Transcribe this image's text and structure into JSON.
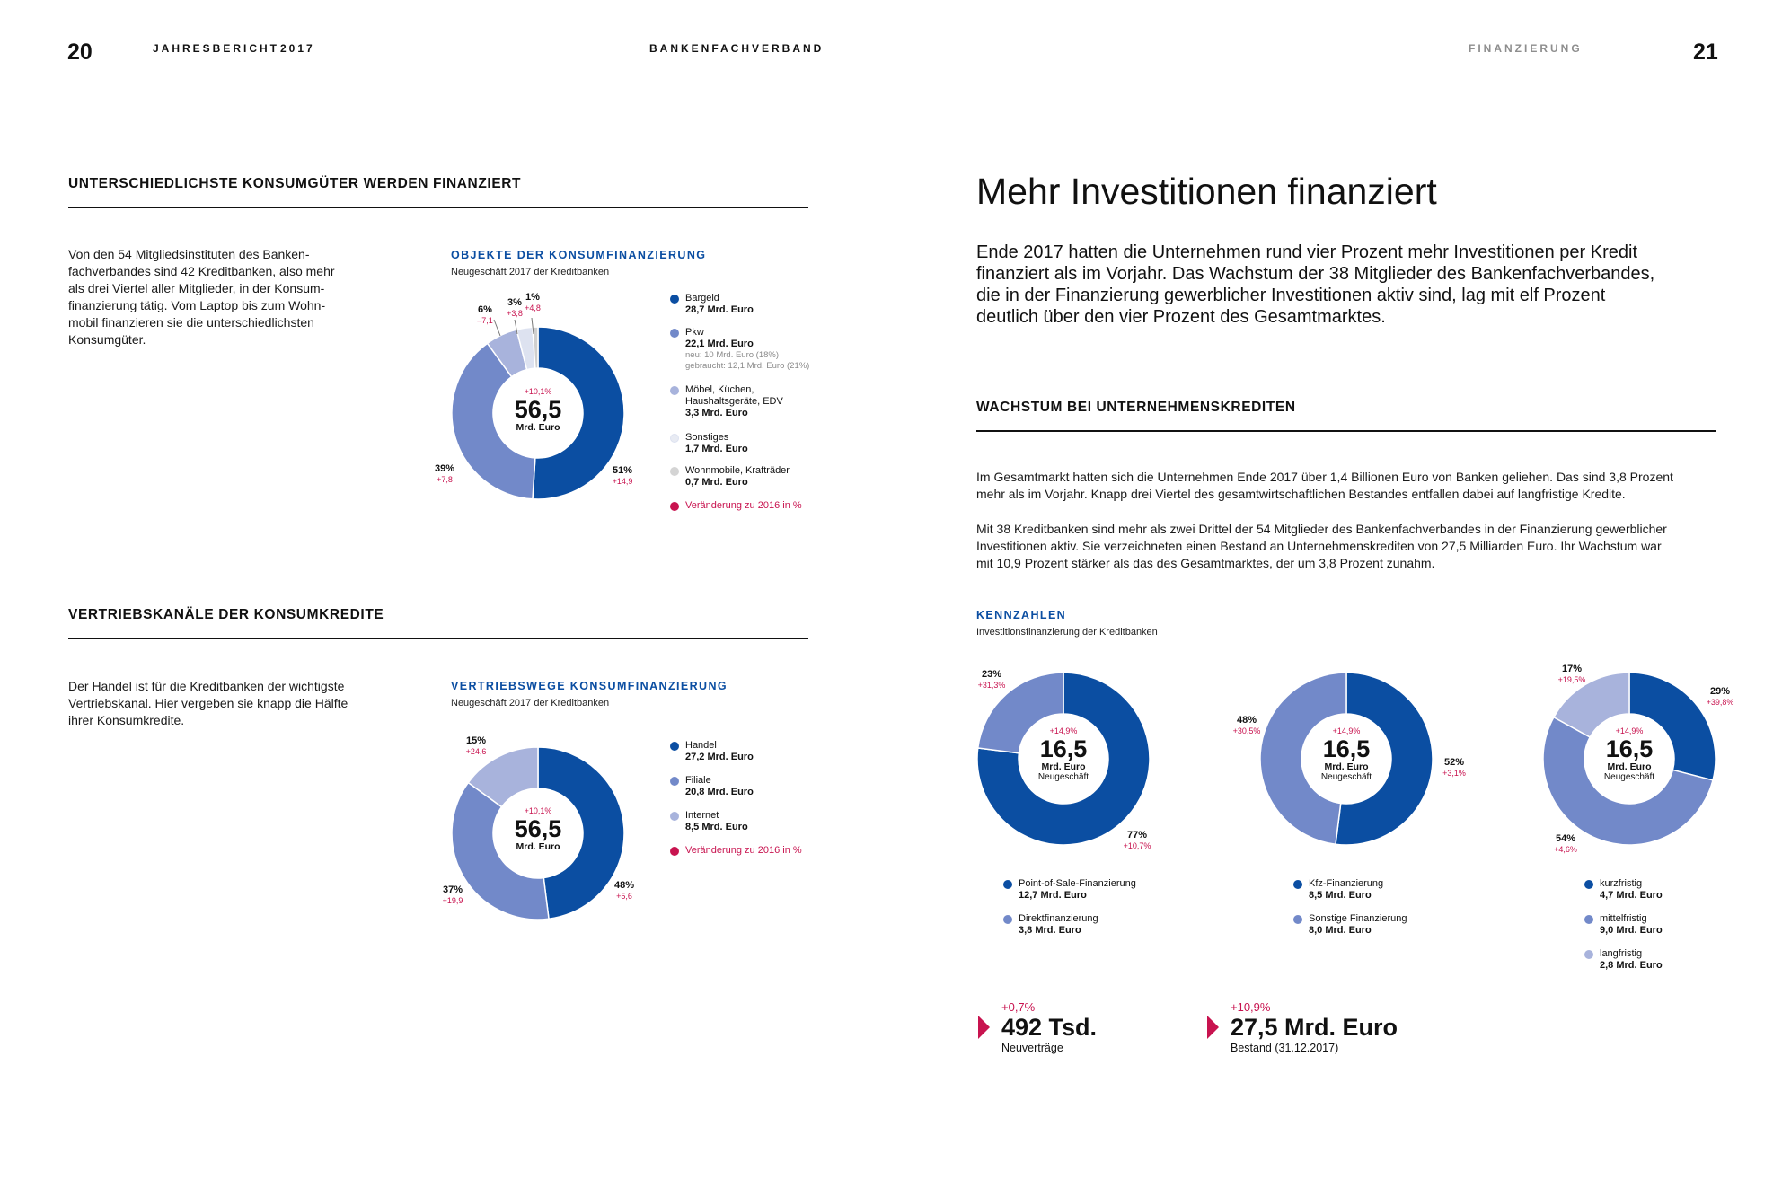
{
  "header": {
    "page_left": "20",
    "running_left_1": "JAHRESBERICHT",
    "running_left_2": "2017",
    "running_center": "BANKENFACHVERBAND",
    "running_right": "FINANZIERUNG",
    "page_right": "21"
  },
  "left": {
    "section1": {
      "heading": "UNTERSCHIEDLICHSTE KONSUMGÜTER WERDEN FINANZIERT",
      "lines": [
        "Von den 54 Mitgliedsinstituten des Banken-",
        "fachverbandes sind 42 Kreditbanken, also mehr",
        "als drei Viertel aller Mitglieder, in der Konsum-",
        "finanzierung tätig. Vom Laptop bis zum Wohn-",
        "mobil finanzieren sie die unterschiedlichsten",
        "Konsumgüter."
      ]
    },
    "section2": {
      "heading": "VERTRIEBSKANÄLE DER KONSUMKREDITE",
      "lines": [
        "Der Handel ist für die Kreditbanken der wichtigste",
        "Vertriebskanal. Hier vergeben sie knapp die Hälfte",
        "ihrer Konsumkredite."
      ]
    }
  },
  "right": {
    "title": "Mehr Investitionen finanziert",
    "lead_lines": [
      "Ende 2017 hatten die Unternehmen rund vier Prozent mehr Investitionen per Kredit",
      "finanziert als im Vorjahr. Das Wachstum der 38 Mitglieder des Bankenfachverbandes,",
      "die in der Finanzierung gewerblicher Investitionen aktiv sind, lag mit elf Prozent",
      "deutlich über den vier Prozent des Gesamtmarktes."
    ],
    "section_heading": "WACHSTUM BEI UNTERNEHMENSKREDITEN",
    "para1_lines": [
      "Im Gesamtmarkt hatten sich die Unternehmen Ende 2017 über 1,4 Billionen Euro von Banken geliehen. Das sind 3,8 Prozent",
      "mehr als im Vorjahr. Knapp drei Viertel des gesamtwirtschaftlichen Bestandes entfallen dabei auf langfristige Kredite."
    ],
    "para2_lines": [
      "Mit 38 Kreditbanken sind mehr als zwei Drittel der 54 Mitglieder des Bankenfachverbandes in der Finanzierung gewerblicher",
      "Investitionen aktiv. Sie verzeichneten einen Bestand an Unternehmenskrediten von 27,5 Milliarden Euro. Ihr Wachstum war",
      "mit 10,9 Prozent stärker als das des Gesamtmarktes, der um 3,8 Prozent zunahm."
    ],
    "kennzahlen_title": "KENNZAHLEN",
    "kennzahlen_sub": "Investitionsfinanzierung der Kreditbanken",
    "kpis": [
      {
        "change": "+0,7%",
        "value": "492 Tsd.",
        "caption": "Neuverträge"
      },
      {
        "change": "+10,9%",
        "value": "27,5 Mrd. Euro",
        "caption": "Bestand (31.12.2017)"
      }
    ]
  },
  "chart_data": [
    {
      "type": "pie",
      "title": "OBJEKTE DER KONSUMFINANZIERUNG",
      "subtitle": "Neugeschäft 2017 der Kreditbanken",
      "center_change": "+10,1%",
      "center_value": "56,5",
      "center_unit": "Mrd. Euro",
      "center_unit2": "",
      "slices": [
        {
          "label": "Bargeld",
          "value": "28,7 Mrd. Euro",
          "share": 51,
          "pct": "51%",
          "change": "+14,9",
          "color": "#0b4ea2",
          "note": []
        },
        {
          "label": "Pkw",
          "value": "22,1 Mrd. Euro",
          "share": 39,
          "pct": "39%",
          "change": "+7,8",
          "color": "#7289c9",
          "note": [
            "neu: 10 Mrd. Euro (18%)",
            "gebraucht: 12,1 Mrd. Euro (21%)"
          ]
        },
        {
          "label": "Möbel, Küchen, Haushaltsgeräte, EDV",
          "label_lines": [
            "Möbel, Küchen,",
            "Haushaltsgeräte, EDV"
          ],
          "value": "3,3 Mrd. Euro",
          "share": 6,
          "pct": "6%",
          "change": "–7,1",
          "color": "#a8b3dc",
          "note": []
        },
        {
          "label": "Sonstiges",
          "value": "1,7 Mrd. Euro",
          "share": 3,
          "pct": "3%",
          "change": "+3,8",
          "color": "#dde2f0",
          "note": []
        },
        {
          "label": "Wohnmobile, Krafträder",
          "value": "0,7 Mrd. Euro",
          "share": 1,
          "pct": "1%",
          "change": "+4,8",
          "color": "#cfcfcf",
          "note": []
        }
      ],
      "change_legend": "Veränderung zu 2016 in %",
      "change_color": "#c8134f"
    },
    {
      "type": "pie",
      "title": "VERTRIEBSWEGE KONSUMFINANZIERUNG",
      "subtitle": "Neugeschäft 2017 der Kreditbanken",
      "center_change": "+10,1%",
      "center_value": "56,5",
      "center_unit": "Mrd. Euro",
      "center_unit2": "",
      "slices": [
        {
          "label": "Handel",
          "value": "27,2 Mrd. Euro",
          "share": 48,
          "pct": "48%",
          "change": "+5,6",
          "color": "#0b4ea2",
          "note": []
        },
        {
          "label": "Filiale",
          "value": "20,8 Mrd. Euro",
          "share": 37,
          "pct": "37%",
          "change": "+19,9",
          "color": "#7289c9",
          "note": []
        },
        {
          "label": "Internet",
          "value": "8,5 Mrd. Euro",
          "share": 15,
          "pct": "15%",
          "change": "+24,6",
          "color": "#a8b3dc",
          "note": []
        }
      ],
      "change_legend": "Veränderung zu 2016 in %",
      "change_color": "#c8134f"
    },
    {
      "type": "pie",
      "title": "",
      "center_change": "+14,9%",
      "center_value": "16,5",
      "center_unit": "Mrd. Euro",
      "center_unit2": "Neugeschäft",
      "slices": [
        {
          "label": "Point-of-Sale-Finanzierung",
          "value": "12,7 Mrd. Euro",
          "share": 77,
          "pct": "77%",
          "change": "+10,7%",
          "color": "#0b4ea2",
          "note": []
        },
        {
          "label": "Direktfinanzierung",
          "value": "3,8 Mrd. Euro",
          "share": 23,
          "pct": "23%",
          "change": "+31,3%",
          "color": "#7289c9",
          "note": []
        }
      ]
    },
    {
      "type": "pie",
      "title": "",
      "center_change": "+14,9%",
      "center_value": "16,5",
      "center_unit": "Mrd. Euro",
      "center_unit2": "Neugeschäft",
      "slices": [
        {
          "label": "Kfz-Finanzierung",
          "value": "8,5 Mrd. Euro",
          "share": 52,
          "pct": "52%",
          "change": "+3,1%",
          "color": "#0b4ea2",
          "note": []
        },
        {
          "label": "Sonstige Finanzierung",
          "value": "8,0 Mrd. Euro",
          "share": 48,
          "pct": "48%",
          "change": "+30,5%",
          "color": "#7289c9",
          "note": []
        }
      ]
    },
    {
      "type": "pie",
      "title": "",
      "center_change": "+14,9%",
      "center_value": "16,5",
      "center_unit": "Mrd. Euro",
      "center_unit2": "Neugeschäft",
      "slices": [
        {
          "label": "kurzfristig",
          "value": "4,7 Mrd. Euro",
          "share": 29,
          "pct": "29%",
          "change": "+39,8%",
          "color": "#0b4ea2",
          "note": []
        },
        {
          "label": "mittelfristig",
          "value": "9,0 Mrd. Euro",
          "share": 54,
          "pct": "54%",
          "change": "+4,6%",
          "color": "#7289c9",
          "note": []
        },
        {
          "label": "langfristig",
          "value": "2,8 Mrd. Euro",
          "share": 17,
          "pct": "17%",
          "change": "+19,5%",
          "color": "#a8b3dc",
          "note": []
        }
      ]
    }
  ]
}
